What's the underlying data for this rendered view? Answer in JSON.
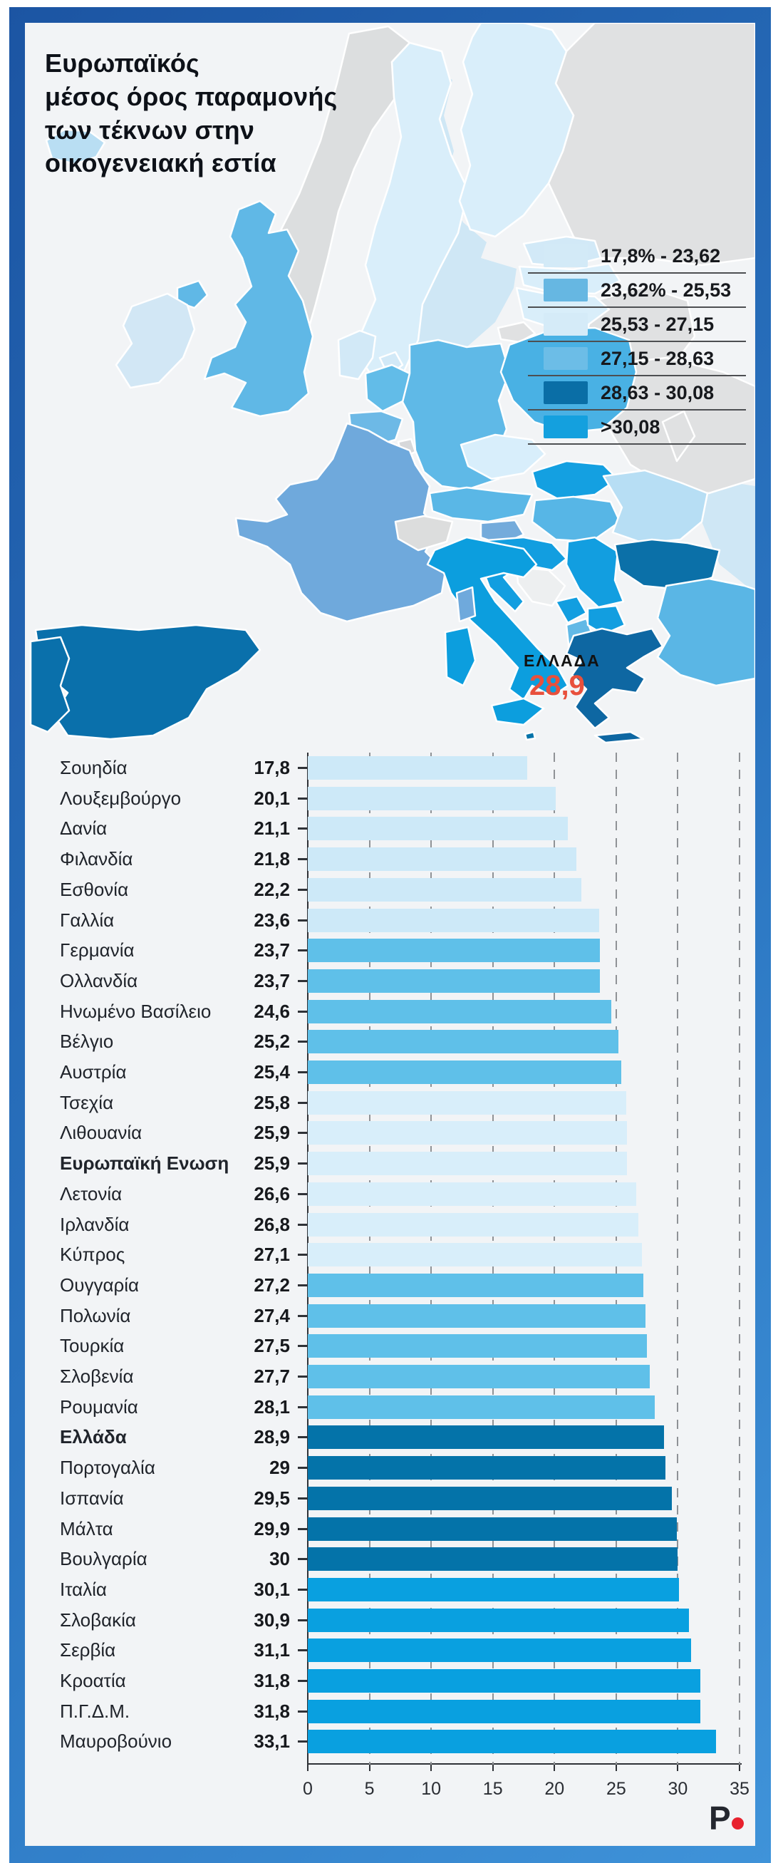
{
  "title": {
    "lines": [
      "Ευρωπαϊκός",
      "μέσος όρος παραμονής",
      "των τέκνων στην",
      "οικογενειακή εστία"
    ]
  },
  "legend": {
    "items": [
      {
        "label": "17,8% - 23,62",
        "color": "#d3eaf7"
      },
      {
        "label": "23,62% - 25,53",
        "color": "#66b7e2"
      },
      {
        "label": "25,53 - 27,15",
        "color": "#d5ebf8"
      },
      {
        "label": "27,15 - 28,63",
        "color": "#6cbde7"
      },
      {
        "label": "28,63 - 30,08",
        "color": "#0a6ea6"
      },
      {
        "label": ">30,08",
        "color": "#14a0de"
      }
    ]
  },
  "map": {
    "annotation": {
      "country": "ΕΛΛΑΔΑ",
      "value": "28,9",
      "value_color": "#e8503c"
    },
    "sea_color": "#cfe7f5",
    "no_data_color": "#dfe0e1",
    "countries": [
      {
        "id": "baltic-sea",
        "color": "#cfe7f5"
      },
      {
        "id": "black-sea",
        "color": "#cfe7f5"
      },
      {
        "id": "iceland",
        "color": "#b9def3"
      },
      {
        "id": "norway",
        "color": "#dcdedf"
      },
      {
        "id": "sweden",
        "color": "#d9eefa"
      },
      {
        "id": "finland",
        "color": "#d9eefa"
      },
      {
        "id": "estonia",
        "color": "#d2e9f7"
      },
      {
        "id": "latvia",
        "color": "#d9eefa"
      },
      {
        "id": "lithuania",
        "color": "#d9eefa"
      },
      {
        "id": "russia",
        "color": "#e0e1e2"
      },
      {
        "id": "belarus",
        "color": "#e0e1e2"
      },
      {
        "id": "ukraine",
        "color": "#e0e1e2"
      },
      {
        "id": "moldova",
        "color": "#e0e1e2"
      },
      {
        "id": "denmark",
        "color": "#d2e9f7"
      },
      {
        "id": "uk",
        "color": "#60b8e6"
      },
      {
        "id": "ireland",
        "color": "#d2e7f5"
      },
      {
        "id": "netherlands",
        "color": "#62bce8"
      },
      {
        "id": "belgium",
        "color": "#6db9e6"
      },
      {
        "id": "luxembourg",
        "color": "#d7d8da"
      },
      {
        "id": "germany",
        "color": "#5fb9e7"
      },
      {
        "id": "poland",
        "color": "#49b1e4"
      },
      {
        "id": "czechia",
        "color": "#d8eefb"
      },
      {
        "id": "slovakia",
        "color": "#14a0e1"
      },
      {
        "id": "austria",
        "color": "#5ab7e6"
      },
      {
        "id": "hungary",
        "color": "#57b6e6"
      },
      {
        "id": "slovenia",
        "color": "#74abdb"
      },
      {
        "id": "croatia",
        "color": "#129ee0"
      },
      {
        "id": "bosnia",
        "color": "#edeff0"
      },
      {
        "id": "serbia",
        "color": "#129ee0"
      },
      {
        "id": "montenegro",
        "color": "#129ee0"
      },
      {
        "id": "albania",
        "color": "#62b9e6"
      },
      {
        "id": "north-macedonia",
        "color": "#129ee0"
      },
      {
        "id": "romania",
        "color": "#b7def4"
      },
      {
        "id": "bulgaria",
        "color": "#0b70a8"
      },
      {
        "id": "greece",
        "color": "#0e67a2"
      },
      {
        "id": "turkey",
        "color": "#5ab6e5"
      },
      {
        "id": "spain",
        "color": "#0a70ab"
      },
      {
        "id": "portugal",
        "color": "#0a70ab"
      },
      {
        "id": "italy",
        "color": "#0c9ede"
      },
      {
        "id": "malta",
        "color": "#0473a9"
      },
      {
        "id": "switzerland",
        "color": "#dcdddd"
      },
      {
        "id": "france",
        "color": "#6fa9dc"
      }
    ]
  },
  "chart_data": {
    "type": "bar",
    "orientation": "horizontal",
    "title": "Ευρωπαϊκός μέσος όρος παραμονής των τέκνων στην οικογενειακή εστία",
    "categories": [
      "Σουηδία",
      "Λουξεμβούργο",
      "Δανία",
      "Φιλανδία",
      "Εσθονία",
      "Γαλλία",
      "Γερμανία",
      "Ολλανδία",
      "Ηνωμένο Βασίλειο",
      "Βέλγιο",
      "Αυστρία",
      "Τσεχία",
      "Λιθουανία",
      "Ευρωπαϊκή Ενωση",
      "Λετονία",
      "Ιρλανδία",
      "Κύπρος",
      "Ουγγαρία",
      "Πολωνία",
      "Τουρκία",
      "Σλοβενία",
      "Ρουμανία",
      "Ελλάδα",
      "Πορτογαλία",
      "Ισπανία",
      "Μάλτα",
      "Βουλγαρία",
      "Ιταλία",
      "Σλοβακία",
      "Σερβία",
      "Κροατία",
      "Π.Γ.Δ.Μ.",
      "Μαυροβούνιο"
    ],
    "values": [
      17.8,
      20.1,
      21.1,
      21.8,
      22.2,
      23.6,
      23.7,
      23.7,
      24.6,
      25.2,
      25.4,
      25.8,
      25.9,
      25.9,
      26.6,
      26.8,
      27.1,
      27.2,
      27.4,
      27.5,
      27.7,
      28.1,
      28.9,
      29,
      29.5,
      29.9,
      30,
      30.1,
      30.9,
      31.1,
      31.8,
      31.8,
      33.1
    ],
    "display_values": [
      "17,8",
      "20,1",
      "21,1",
      "21,8",
      "22,2",
      "23,6",
      "23,7",
      "23,7",
      "24,6",
      "25,2",
      "25,4",
      "25,8",
      "25,9",
      "25,9",
      "26,6",
      "26,8",
      "27,1",
      "27,2",
      "27,4",
      "27,5",
      "27,7",
      "28,1",
      "28,9",
      "29",
      "29,5",
      "29,9",
      "30",
      "30,1",
      "30,9",
      "31,1",
      "31,8",
      "31,8",
      "33,1"
    ],
    "bold_rows": [
      13,
      22
    ],
    "palette": [
      "#cde9f8",
      "#5fc0e9",
      "#d8eefa",
      "#5fc0e9",
      "#0473a9",
      "#09a0e0"
    ],
    "row_color_index": [
      0,
      0,
      0,
      0,
      0,
      0,
      1,
      1,
      1,
      1,
      1,
      2,
      2,
      2,
      2,
      2,
      2,
      3,
      3,
      3,
      3,
      3,
      4,
      4,
      4,
      4,
      4,
      5,
      5,
      5,
      5,
      5,
      5
    ],
    "xlim": [
      0,
      35
    ],
    "x_ticks": [
      0,
      5,
      10,
      15,
      20,
      25,
      30,
      35
    ],
    "grid": "dashed-vertical"
  },
  "footer": {
    "logo_text": "P",
    "logo_dot_color": "#e8212e"
  },
  "frame": {
    "gradient_start": "#1c55a3",
    "gradient_end": "#3f93d9"
  }
}
